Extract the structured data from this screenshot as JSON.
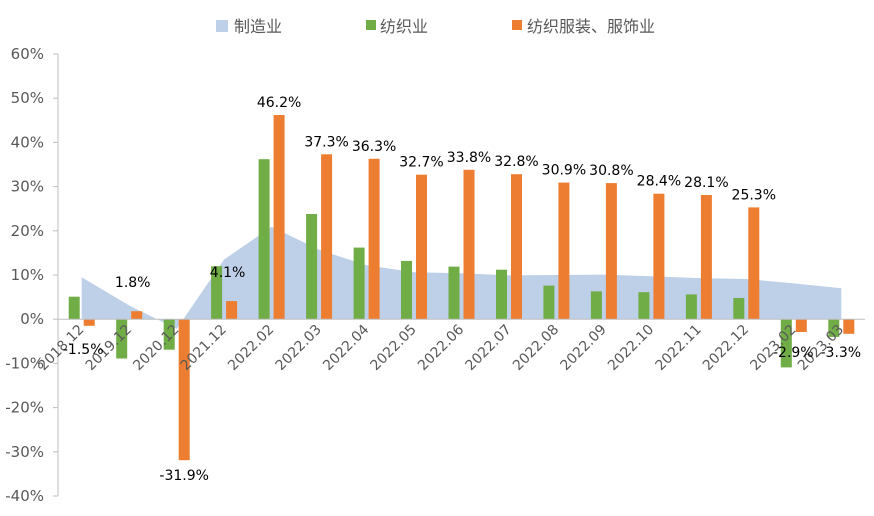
{
  "chart_data": {
    "type": "bar",
    "legend_position": "top",
    "grid": false,
    "ylim": [
      -40,
      60
    ],
    "ytick_step": 10,
    "ytick_suffix": "%",
    "categories": [
      "2018.12",
      "2019.12",
      "2020.12",
      "2021.12",
      "2022.02",
      "2022.03",
      "2022.04",
      "2022.05",
      "2022.06",
      "2022.07",
      "2022.08",
      "2022.09",
      "2022.10",
      "2022.11",
      "2022.12",
      "2023.02",
      "2023.03"
    ],
    "series": [
      {
        "name": "制造业",
        "kind": "area",
        "color": "#bdd0e8",
        "values": [
          9.5,
          3.1,
          -2.2,
          13.5,
          20.9,
          15.7,
          12.2,
          10.6,
          10.4,
          9.9,
          10.0,
          10.1,
          9.7,
          9.3,
          9.1,
          8.1,
          7.0
        ]
      },
      {
        "name": "纺织业",
        "kind": "bar",
        "color": "#70ad47",
        "values": [
          5.1,
          -8.9,
          -6.9,
          12.0,
          36.2,
          23.8,
          16.2,
          13.2,
          11.9,
          11.2,
          7.6,
          6.3,
          6.1,
          5.6,
          4.8,
          -10.9,
          -4.0
        ]
      },
      {
        "name": "纺织服装、服饰业",
        "kind": "bar",
        "color": "#ed7d31",
        "values": [
          -1.5,
          1.8,
          -31.9,
          4.1,
          46.2,
          37.3,
          36.3,
          32.7,
          33.8,
          32.8,
          30.9,
          30.8,
          28.4,
          28.1,
          25.3,
          -2.9,
          -3.3
        ],
        "labels": [
          "-1.5%",
          "1.8%",
          "-31.9%",
          "4.1%",
          "46.2%",
          "37.3%",
          "36.3%",
          "32.7%",
          "33.8%",
          "32.8%",
          "30.9%",
          "30.8%",
          "28.4%",
          "28.1%",
          "25.3%",
          "-2.9%",
          "-3.3%"
        ]
      }
    ]
  }
}
